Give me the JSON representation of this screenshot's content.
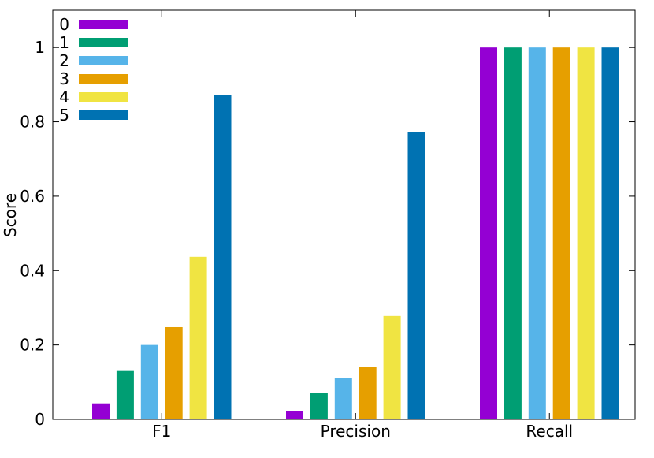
{
  "chart_data": {
    "type": "bar",
    "title": "",
    "xlabel": "",
    "ylabel": "Score",
    "ylim": [
      0,
      1.1
    ],
    "yticks": [
      "0",
      "0.2",
      "0.4",
      "0.6",
      "0.8",
      "1"
    ],
    "categories": [
      "F1",
      "Precision",
      "Recall"
    ],
    "series": [
      {
        "name": "0",
        "color": "#9400d3",
        "values": [
          0.043,
          0.022,
          1.0
        ]
      },
      {
        "name": "1",
        "color": "#009e73",
        "values": [
          0.13,
          0.07,
          1.0
        ]
      },
      {
        "name": "2",
        "color": "#56b4e9",
        "values": [
          0.2,
          0.112,
          1.0
        ]
      },
      {
        "name": "3",
        "color": "#e69f00",
        "values": [
          0.248,
          0.142,
          1.0
        ]
      },
      {
        "name": "4",
        "color": "#f0e442",
        "values": [
          0.437,
          0.278,
          1.0
        ]
      },
      {
        "name": "5",
        "color": "#0072b2",
        "values": [
          0.872,
          0.773,
          1.0
        ]
      }
    ],
    "grid": false,
    "legend_position": "top-left"
  }
}
